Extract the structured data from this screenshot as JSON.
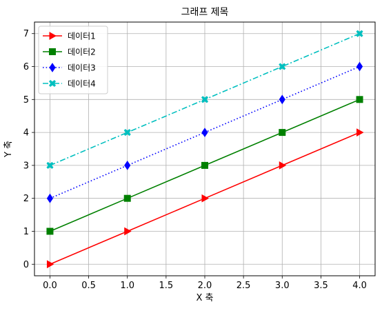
{
  "chart_data": {
    "type": "line",
    "title": "그래프 제목",
    "xlabel": "X 축",
    "ylabel": "Y 축",
    "x": [
      0,
      1,
      2,
      3,
      4
    ],
    "xlim": [
      -0.2,
      4.2
    ],
    "ylim": [
      -0.35,
      7.35
    ],
    "xticks": [
      "0.0",
      "0.5",
      "1.0",
      "1.5",
      "2.0",
      "2.5",
      "3.0",
      "3.5",
      "4.0"
    ],
    "yticks": [
      "0",
      "1",
      "2",
      "3",
      "4",
      "5",
      "6",
      "7"
    ],
    "grid": true,
    "legend_position": "top-left",
    "series": [
      {
        "name": "데이터1",
        "values": [
          0,
          1,
          2,
          3,
          4
        ],
        "color": "#ff0000",
        "line_style": "solid",
        "marker": "triangle-right"
      },
      {
        "name": "데이터2",
        "values": [
          1,
          2,
          3,
          4,
          5
        ],
        "color": "#008000",
        "line_style": "solid",
        "marker": "square"
      },
      {
        "name": "데이터3",
        "values": [
          2,
          3,
          4,
          5,
          6
        ],
        "color": "#0000ff",
        "line_style": "dotted",
        "marker": "diamond"
      },
      {
        "name": "데이터4",
        "values": [
          3,
          4,
          5,
          6,
          7
        ],
        "color": "#00bfbf",
        "line_style": "dashdot",
        "marker": "x-filled"
      }
    ]
  }
}
